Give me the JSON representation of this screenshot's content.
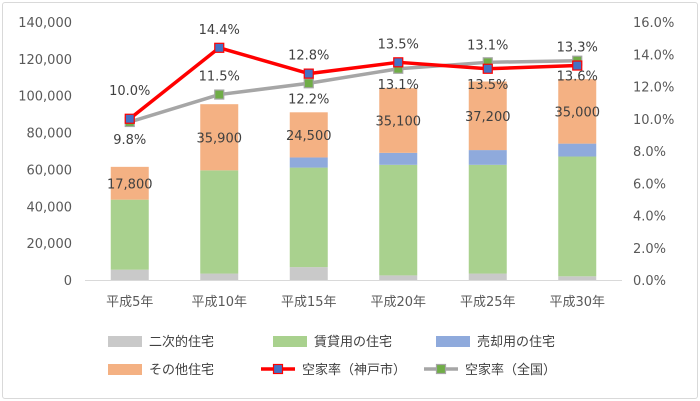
{
  "chart_data": {
    "type": "bar",
    "stacked": true,
    "categories": [
      "平成5年",
      "平成10年",
      "平成15年",
      "平成20年",
      "平成25年",
      "平成30年"
    ],
    "series": [
      {
        "name": "二次的住宅",
        "axis": "left",
        "color": "#c9c9c9",
        "values": [
          5600,
          3500,
          7000,
          2500,
          3500,
          2000
        ]
      },
      {
        "name": "賃貸用の住宅",
        "axis": "left",
        "color": "#a9d18e",
        "values": [
          38000,
          56000,
          54000,
          60000,
          59000,
          65000
        ]
      },
      {
        "name": "売却用の住宅",
        "axis": "left",
        "color": "#8faadc",
        "values": [
          0,
          0,
          5500,
          6500,
          8000,
          7000
        ]
      },
      {
        "name": "その他住宅",
        "axis": "left",
        "color": "#f4b183",
        "values": [
          17800,
          35900,
          24500,
          35100,
          37200,
          35000
        ]
      },
      {
        "name": "空家率（神戸市）",
        "axis": "right",
        "type": "line",
        "color": "#ff0000",
        "marker_color": "#4472c4",
        "values": [
          10.0,
          14.4,
          12.8,
          13.5,
          13.1,
          13.3
        ]
      },
      {
        "name": "空家率（全国）",
        "axis": "right",
        "type": "line",
        "color": "#a6a6a6",
        "marker_color": "#70ad47",
        "values": [
          9.8,
          11.5,
          12.2,
          13.1,
          13.5,
          13.6
        ]
      }
    ],
    "bar_labels": [
      "17,800",
      "35,900",
      "24,500",
      "35,100",
      "37,200",
      "35,000"
    ],
    "line_labels_kobe": [
      "10.0%",
      "14.4%",
      "12.8%",
      "13.5%",
      "13.1%",
      "13.3%"
    ],
    "line_labels_zenkoku": [
      "9.8%",
      "11.5%",
      "12.2%",
      "13.1%",
      "13.5%",
      "13.6%"
    ],
    "yleft": {
      "min": 0,
      "max": 140000,
      "ticks": [
        "0",
        "20,000",
        "40,000",
        "60,000",
        "80,000",
        "100,000",
        "120,000",
        "140,000"
      ]
    },
    "yright": {
      "min": 0,
      "max": 16,
      "ticks": [
        "0.0%",
        "2.0%",
        "4.0%",
        "6.0%",
        "8.0%",
        "10.0%",
        "12.0%",
        "14.0%",
        "16.0%"
      ]
    },
    "grid": false,
    "legend_position": "bottom"
  }
}
